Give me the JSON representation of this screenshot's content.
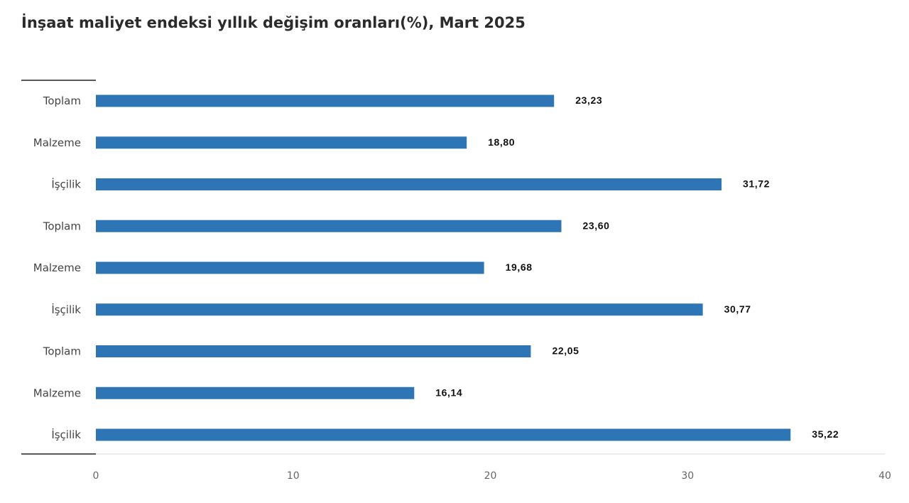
{
  "chart_data": {
    "type": "bar",
    "orientation": "horizontal",
    "title": "İnşaat maliyet endeksi yıllık değişim oranları(%), Mart 2025",
    "xlabel": "",
    "ylabel": "",
    "categories": [
      "Toplam",
      "Malzeme",
      "İşçilik",
      "Toplam",
      "Malzeme",
      "İşçilik",
      "Toplam",
      "Malzeme",
      "İşçilik"
    ],
    "values": [
      23.23,
      18.8,
      31.72,
      23.6,
      19.68,
      30.77,
      22.05,
      16.14,
      35.22
    ],
    "value_labels": [
      "23,23",
      "18,80",
      "31,72",
      "23,60",
      "19,68",
      "30,77",
      "22,05",
      "16,14",
      "35,22"
    ],
    "xlim": [
      0,
      40
    ],
    "xticks": [
      0,
      10,
      20,
      30,
      40
    ],
    "grid": false,
    "bar_color": "#2e75b6"
  }
}
